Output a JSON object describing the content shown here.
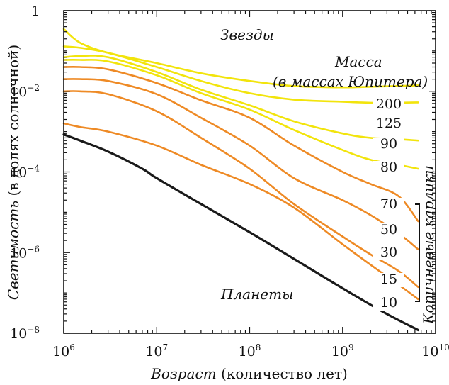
{
  "chart_data": {
    "type": "line",
    "x_scale": "log",
    "y_scale": "log",
    "xlim": [
      1000000,
      10000000000
    ],
    "ylim": [
      1e-08,
      1
    ],
    "x_ticks": [
      {
        "base": "10",
        "exp": "6",
        "value": 1000000
      },
      {
        "base": "10",
        "exp": "7",
        "value": 10000000
      },
      {
        "base": "10",
        "exp": "8",
        "value": 100000000
      },
      {
        "base": "10",
        "exp": "9",
        "value": 1000000000
      },
      {
        "base": "10",
        "exp": "10",
        "value": 10000000000
      }
    ],
    "y_ticks": [
      {
        "base": "1",
        "exp": "",
        "value": 1
      },
      {
        "base": "10",
        "exp": "−2",
        "value": 0.01
      },
      {
        "base": "10",
        "exp": "−4",
        "value": 0.0001
      },
      {
        "base": "10",
        "exp": "−6",
        "value": 1e-06
      },
      {
        "base": "10",
        "exp": "−8",
        "value": 1e-08
      }
    ],
    "xlabel": {
      "italic": "Возраст",
      "normal": " (количество лет)"
    },
    "ylabel": {
      "italic": "Светимость",
      "normal": " (в долях солнечной)"
    },
    "annotations": {
      "stars": "Звезды",
      "planets": "Планеты",
      "mass_title_1": "Масса",
      "mass_title_2": "(в массах Юпитера)",
      "brown_dwarfs": "Коричневые карлики"
    },
    "colors": {
      "star": "#f2e40c",
      "brown_dwarf": "#ee8a25",
      "planet": "#1a1a1a"
    },
    "series": [
      {
        "name": "200",
        "category": "star",
        "x": [
          1000000,
          1500000,
          3000000,
          10000000,
          30000000,
          100000000,
          300000000,
          1000000000,
          2000000000,
          4000000000,
          6500000000
        ],
        "y": [
          0.35,
          0.16,
          0.09,
          0.05,
          0.028,
          0.018,
          0.0135,
          0.0125,
          0.013,
          0.0135,
          0.014
        ]
      },
      {
        "name": "125",
        "category": "star",
        "x": [
          1000000,
          1500000,
          3000000,
          10000000,
          30000000,
          100000000,
          300000000,
          1000000000,
          2000000000,
          4000000000,
          6500000000
        ],
        "y": [
          0.13,
          0.12,
          0.09,
          0.04,
          0.018,
          0.009,
          0.0062,
          0.0055,
          0.0052,
          0.0052,
          0.0053
        ]
      },
      {
        "name": "90",
        "category": "star",
        "x": [
          1000000,
          1500000,
          3000000,
          10000000,
          30000000,
          100000000,
          300000000,
          1000000000,
          2000000000,
          4000000000,
          6500000000
        ],
        "y": [
          0.07,
          0.075,
          0.07,
          0.03,
          0.011,
          0.0045,
          0.0018,
          0.0009,
          0.0007,
          0.00065,
          0.0006
        ]
      },
      {
        "name": "80",
        "category": "star",
        "x": [
          1000000,
          1500000,
          3000000,
          10000000,
          30000000,
          100000000,
          300000000,
          1000000000,
          2000000000,
          4000000000,
          6500000000
        ],
        "y": [
          0.06,
          0.06,
          0.055,
          0.025,
          0.009,
          0.0035,
          0.0011,
          0.00035,
          0.0002,
          0.00015,
          0.00012
        ]
      },
      {
        "name": "70",
        "category": "brown_dwarf",
        "x": [
          1000000,
          1500000,
          3000000,
          10000000,
          30000000,
          100000000,
          300000000,
          1000000000,
          2000000000,
          4000000000,
          6500000000
        ],
        "y": [
          0.04,
          0.04,
          0.035,
          0.016,
          0.006,
          0.0022,
          0.00045,
          0.0001,
          5e-05,
          2.5e-05,
          6e-06
        ]
      },
      {
        "name": "50",
        "category": "brown_dwarf",
        "x": [
          1000000,
          1500000,
          3000000,
          10000000,
          30000000,
          100000000,
          300000000,
          1000000000,
          2000000000,
          4000000000,
          6500000000
        ],
        "y": [
          0.02,
          0.02,
          0.018,
          0.0085,
          0.0022,
          0.00045,
          7e-05,
          2e-05,
          8.5e-06,
          3e-06,
          1.2e-06
        ]
      },
      {
        "name": "30",
        "category": "brown_dwarf",
        "x": [
          1000000,
          1500000,
          3000000,
          10000000,
          30000000,
          100000000,
          300000000,
          1000000000,
          2000000000,
          4000000000,
          6500000000
        ],
        "y": [
          0.01,
          0.01,
          0.0085,
          0.0032,
          0.0007,
          0.00012,
          1.6e-05,
          2.5e-06,
          9e-07,
          3.5e-07,
          1.4e-07
        ]
      },
      {
        "name": "15",
        "category": "brown_dwarf",
        "x": [
          1000000,
          1500000,
          3000000,
          10000000,
          30000000,
          100000000,
          300000000,
          1000000000,
          2000000000,
          4000000000,
          6500000000
        ],
        "y": [
          0.0016,
          0.0013,
          0.001,
          0.00045,
          0.00015,
          5e-05,
          1.3e-05,
          1.6e-06,
          5e-07,
          1.6e-07,
          7e-08
        ]
      },
      {
        "name": "10",
        "category": "planet",
        "x": [
          1000000,
          1500000,
          3000000,
          7000000,
          10000000,
          30000000,
          100000000,
          300000000,
          1000000000,
          3000000000,
          6500000000
        ],
        "y": [
          0.00085,
          0.0006,
          0.00032,
          0.00012,
          7e-05,
          1.6e-05,
          3.2e-06,
          7e-07,
          1.3e-07,
          3e-08,
          1.2e-08
        ]
      }
    ]
  }
}
